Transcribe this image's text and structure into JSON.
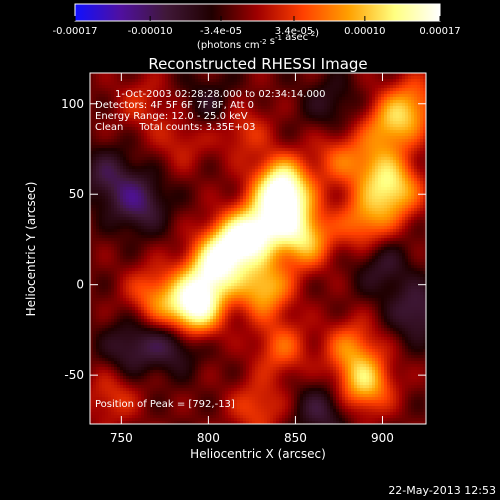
{
  "chart_data": {
    "type": "heatmap",
    "title": "Reconstructed RHESSI Image",
    "xlabel": "Heliocentric X (arcsec)",
    "ylabel": "Heliocentric Y (arcsec)",
    "xlim": [
      732,
      925
    ],
    "ylim": [
      -77,
      117
    ],
    "x_ticks": [
      750,
      800,
      850,
      900
    ],
    "y_ticks": [
      -50,
      0,
      50,
      100
    ],
    "colorbar": {
      "min": -0.00017,
      "max": 0.00017,
      "tick_values": [
        -0.00017,
        -0.0001,
        -3.4e-05,
        3.4e-05,
        0.0001,
        0.00017
      ],
      "tick_labels": [
        "-0.00017",
        "-0.00010",
        "-3.4e-05",
        "3.4e-05",
        "0.00010",
        "0.00017"
      ],
      "unit_label": "(photons cm-2 s-1 asec-2)",
      "colormap": [
        "#1010ff",
        "#5010a0",
        "#401838",
        "#200000",
        "#a00000",
        "#ff4000",
        "#ffa000",
        "#ffff80",
        "#ffffff"
      ]
    },
    "annotations": [
      "1-Oct-2003 02:28:28.000 to 02:34:14.000",
      "Detectors: 4F 5F 6F 7F 8F, Att 0",
      "Energy Range: 12.0 - 25.0 keV",
      "Clean     Total counts: 3.35E+03"
    ],
    "peak_label": "Position of Peak = [792,-13]",
    "sources": [
      {
        "x": 842,
        "y": 55,
        "value": 0.00016
      },
      {
        "x": 828,
        "y": 30,
        "value": 0.00015
      },
      {
        "x": 812,
        "y": 20,
        "value": 0.00016
      },
      {
        "x": 800,
        "y": 5,
        "value": 0.00013
      },
      {
        "x": 792,
        "y": -13,
        "value": 0.00017
      },
      {
        "x": 832,
        "y": -2,
        "value": 0.00012
      },
      {
        "x": 855,
        "y": 25,
        "value": 0.00012
      },
      {
        "x": 845,
        "y": 42,
        "value": 0.0001
      },
      {
        "x": 907,
        "y": 52,
        "value": 0.00012
      },
      {
        "x": 890,
        "y": 35,
        "value": 9e-05
      },
      {
        "x": 905,
        "y": 88,
        "value": 0.0001
      },
      {
        "x": 918,
        "y": 100,
        "value": 8e-05
      },
      {
        "x": 875,
        "y": 70,
        "value": 6e-05
      },
      {
        "x": 895,
        "y": 65,
        "value": 7e-05
      },
      {
        "x": 820,
        "y": 85,
        "value": 5e-05
      },
      {
        "x": 762,
        "y": 100,
        "value": 4e-05
      },
      {
        "x": 785,
        "y": 80,
        "value": 4e-05
      },
      {
        "x": 768,
        "y": -5,
        "value": 7e-05
      },
      {
        "x": 780,
        "y": -20,
        "value": 5e-05
      },
      {
        "x": 890,
        "y": -55,
        "value": 0.00012
      },
      {
        "x": 882,
        "y": -35,
        "value": 8e-05
      },
      {
        "x": 842,
        "y": -35,
        "value": 7e-05
      },
      {
        "x": 828,
        "y": -68,
        "value": 6e-05
      },
      {
        "x": 745,
        "y": -62,
        "value": 5e-05
      },
      {
        "x": 760,
        "y": 45,
        "value": -8e-05
      },
      {
        "x": 742,
        "y": 60,
        "value": -6e-05
      },
      {
        "x": 780,
        "y": -30,
        "value": -9e-05
      },
      {
        "x": 755,
        "y": -35,
        "value": -6e-05
      },
      {
        "x": 920,
        "y": -15,
        "value": -7e-05
      },
      {
        "x": 865,
        "y": -70,
        "value": -6e-05
      },
      {
        "x": 800,
        "y": 100,
        "value": -4e-05
      },
      {
        "x": 900,
        "y": 10,
        "value": -5e-05
      },
      {
        "x": 870,
        "y": 100,
        "value": -4e-05
      }
    ],
    "grid": false
  },
  "footer": {
    "timestamp": "22-May-2013 12:53"
  }
}
